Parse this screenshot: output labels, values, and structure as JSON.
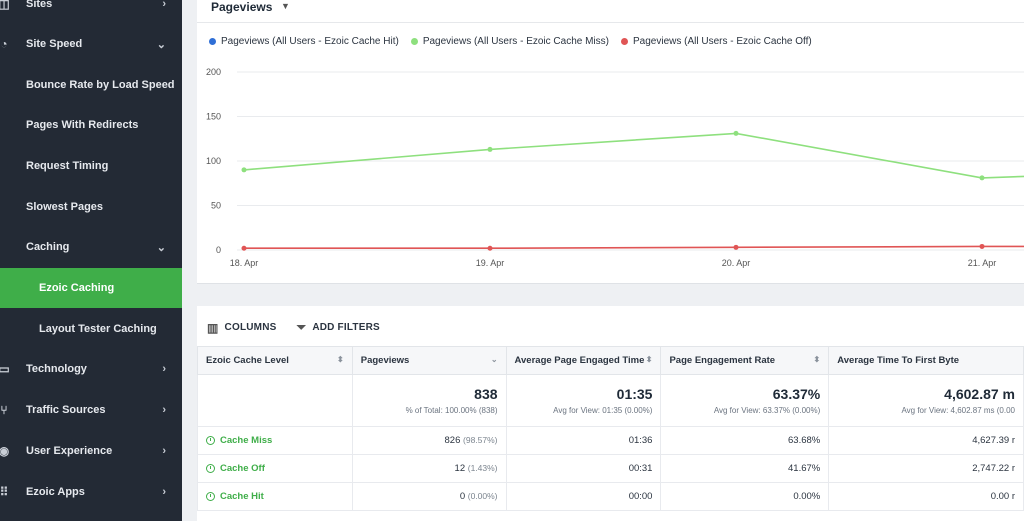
{
  "sidebar": {
    "items": [
      {
        "label": "Sites",
        "icon": "sites-icon",
        "chevron": "›",
        "level": 0
      },
      {
        "label": "Site Speed",
        "icon": "speedometer-icon",
        "chevron": "⌄",
        "level": 0
      },
      {
        "label": "Bounce Rate by Load Speed",
        "level": 1
      },
      {
        "label": "Pages With Redirects",
        "level": 1
      },
      {
        "label": "Request Timing",
        "level": 1
      },
      {
        "label": "Slowest Pages",
        "level": 1
      },
      {
        "label": "Caching",
        "chevron": "⌄",
        "level": 1
      },
      {
        "label": "Ezoic Caching",
        "level": 2,
        "active": true
      },
      {
        "label": "Layout Tester Caching",
        "level": 2
      },
      {
        "label": "Technology",
        "icon": "monitor-icon",
        "chevron": "›",
        "level": 0
      },
      {
        "label": "Traffic Sources",
        "icon": "network-icon",
        "chevron": "›",
        "level": 0
      },
      {
        "label": "User Experience",
        "icon": "user-icon",
        "chevron": "›",
        "level": 0
      },
      {
        "label": "Ezoic Apps",
        "icon": "apps-icon",
        "chevron": "›",
        "level": 0
      }
    ]
  },
  "chart_header": {
    "metric": "Pageviews"
  },
  "chart_data": {
    "type": "line",
    "x": [
      "18. Apr",
      "19. Apr",
      "20. Apr",
      "21. Apr"
    ],
    "ylim": [
      0,
      200
    ],
    "yticks": [
      0,
      50,
      100,
      150,
      200
    ],
    "grid": true,
    "legend_position": "top-left",
    "series": [
      {
        "name": "Pageviews (All Users - Ezoic Cache Hit)",
        "color": "#2f6fd6",
        "values": [
          0,
          0,
          0,
          0
        ]
      },
      {
        "name": "Pageviews (All Users - Ezoic Cache Miss)",
        "color": "#8ee07e",
        "values": [
          90,
          113,
          131,
          81
        ]
      },
      {
        "name": "Pageviews (All Users - Ezoic Cache Off)",
        "color": "#e05555",
        "values": [
          2,
          2,
          3,
          4
        ]
      }
    ]
  },
  "toolbar": {
    "columns_label": "COLUMNS",
    "filters_label": "ADD FILTERS"
  },
  "table": {
    "headers": [
      "Ezoic Cache Level",
      "Pageviews",
      "Average Page Engaged Time",
      "Page Engagement Rate",
      "Average Time To First Byte"
    ],
    "totals": {
      "pageviews": "838",
      "pageviews_sub": "% of Total: 100.00% (838)",
      "engaged_time": "01:35",
      "engaged_time_sub": "Avg for View: 01:35 (0.00%)",
      "engagement_rate": "63.37%",
      "engagement_rate_sub": "Avg for View: 63.37% (0.00%)",
      "ttfb": "4,602.87 m",
      "ttfb_sub": "Avg for View: 4,602.87 ms (0.00"
    },
    "rows": [
      {
        "level": "Cache Miss",
        "pageviews": "826",
        "pageviews_pct": "(98.57%)",
        "engaged_time": "01:36",
        "engagement_rate": "63.68%",
        "ttfb": "4,627.39 r"
      },
      {
        "level": "Cache Off",
        "pageviews": "12",
        "pageviews_pct": "(1.43%)",
        "engaged_time": "00:31",
        "engagement_rate": "41.67%",
        "ttfb": "2,747.22 r"
      },
      {
        "level": "Cache Hit",
        "pageviews": "0",
        "pageviews_pct": "(0.00%)",
        "engaged_time": "00:00",
        "engagement_rate": "0.00%",
        "ttfb": "0.00 r"
      }
    ]
  },
  "colors": {
    "accent": "#3fae49",
    "sidebar_bg": "#232a35"
  }
}
